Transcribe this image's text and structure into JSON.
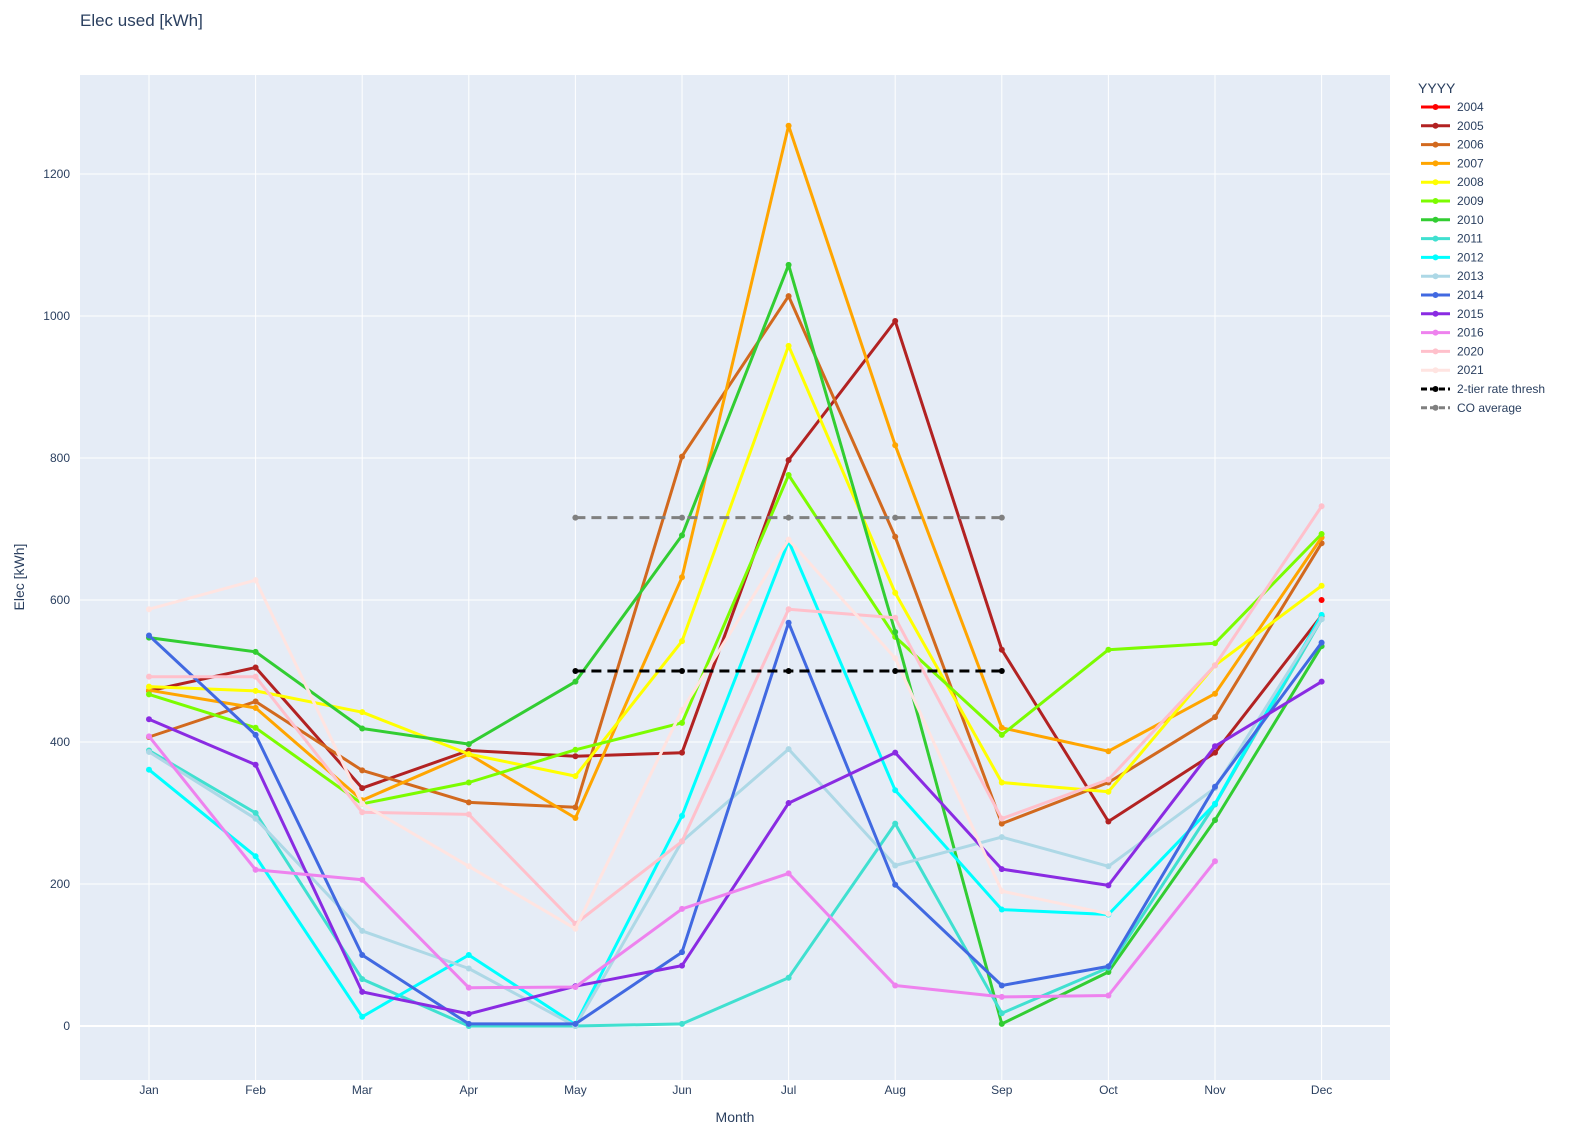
{
  "chart_data": {
    "type": "line",
    "title": "Elec used [kWh]",
    "xlabel": "Month",
    "ylabel": "Elec [kWh]",
    "categories": [
      "Jan",
      "Feb",
      "Mar",
      "Apr",
      "May",
      "Jun",
      "Jul",
      "Aug",
      "Sep",
      "Oct",
      "Nov",
      "Dec"
    ],
    "ylim": [
      -75,
      1340
    ],
    "yticks": [
      0,
      200,
      400,
      600,
      800,
      1000,
      1200
    ],
    "grid": true,
    "legend_title": "YYYY",
    "legend_position": "right",
    "series": [
      {
        "name": "2004",
        "color": "#ff0000",
        "dash": "solid",
        "values": [
          null,
          null,
          null,
          null,
          null,
          null,
          null,
          null,
          null,
          null,
          null,
          600
        ]
      },
      {
        "name": "2005",
        "color": "#b22222",
        "dash": "solid",
        "values": [
          472,
          505,
          335,
          388,
          380,
          385,
          797,
          993,
          530,
          288,
          385,
          578
        ]
      },
      {
        "name": "2006",
        "color": "#d2691e",
        "dash": "solid",
        "values": [
          407,
          457,
          360,
          315,
          308,
          802,
          1028,
          689,
          285,
          343,
          435,
          680
        ]
      },
      {
        "name": "2007",
        "color": "#ffa500",
        "dash": "solid",
        "values": [
          473,
          448,
          318,
          383,
          293,
          632,
          1268,
          818,
          420,
          387,
          468,
          688
        ]
      },
      {
        "name": "2008",
        "color": "#ffff00",
        "dash": "solid",
        "values": [
          478,
          472,
          442,
          383,
          352,
          542,
          958,
          610,
          343,
          330,
          508,
          620
        ]
      },
      {
        "name": "2009",
        "color": "#7cfc00",
        "dash": "solid",
        "values": [
          467,
          420,
          313,
          343,
          389,
          427,
          776,
          548,
          410,
          530,
          539,
          693
        ]
      },
      {
        "name": "2010",
        "color": "#32cd32",
        "dash": "solid",
        "values": [
          547,
          527,
          419,
          397,
          485,
          691,
          1072,
          555,
          3,
          76,
          290,
          535
        ]
      },
      {
        "name": "2011",
        "color": "#40e0d0",
        "dash": "solid",
        "values": [
          388,
          300,
          66,
          0,
          0,
          3,
          68,
          285,
          18,
          82,
          312,
          573
        ]
      },
      {
        "name": "2012",
        "color": "#00ffff",
        "dash": "solid",
        "values": [
          361,
          239,
          13,
          100,
          2,
          296,
          683,
          332,
          164,
          157,
          313,
          579
        ]
      },
      {
        "name": "2013",
        "color": "#add8e6",
        "dash": "solid",
        "values": [
          386,
          292,
          134,
          81,
          0,
          260,
          390,
          226,
          266,
          225,
          335,
          573
        ]
      },
      {
        "name": "2014",
        "color": "#4169e1",
        "dash": "solid",
        "values": [
          550,
          410,
          100,
          3,
          3,
          104,
          568,
          199,
          57,
          84,
          337,
          540
        ]
      },
      {
        "name": "2015",
        "color": "#8a2be2",
        "dash": "solid",
        "values": [
          432,
          368,
          48,
          17,
          56,
          85,
          314,
          385,
          221,
          198,
          394,
          485
        ]
      },
      {
        "name": "2016",
        "color": "#ee82ee",
        "dash": "solid",
        "values": [
          408,
          220,
          206,
          54,
          55,
          165,
          215,
          57,
          41,
          43,
          232,
          null
        ]
      },
      {
        "name": "2020",
        "color": "#ffc0cb",
        "dash": "solid",
        "values": [
          492,
          492,
          301,
          298,
          144,
          260,
          587,
          575,
          292,
          347,
          508,
          732
        ]
      },
      {
        "name": "2021",
        "color": "#ffe4e1",
        "dash": "solid",
        "values": [
          587,
          628,
          313,
          225,
          137,
          445,
          685,
          518,
          190,
          158,
          null,
          null
        ]
      },
      {
        "name": "2-tier rate thresh",
        "color": "#000000",
        "dash": "dash",
        "values": [
          null,
          null,
          null,
          null,
          500,
          500,
          500,
          500,
          500,
          null,
          null,
          null
        ]
      },
      {
        "name": "CO average",
        "color": "#808080",
        "dash": "dash",
        "values": [
          null,
          null,
          null,
          null,
          716,
          716,
          716,
          716,
          716,
          null,
          null,
          null
        ]
      }
    ]
  }
}
